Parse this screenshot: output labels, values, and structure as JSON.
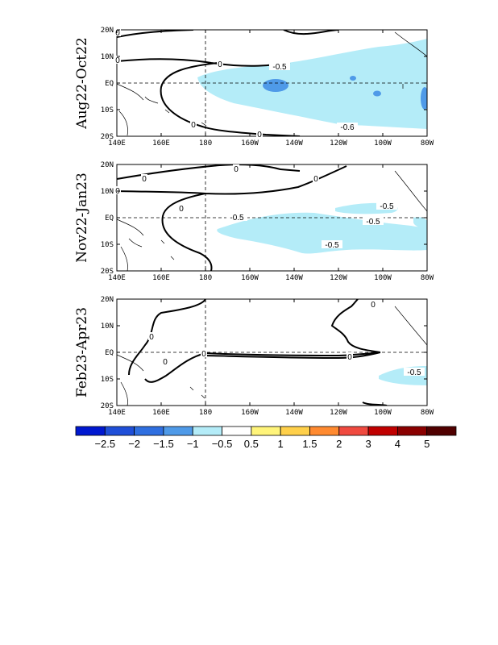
{
  "chart_data": [
    {
      "type": "contour-map",
      "panel_label": "Aug22-Oct22",
      "x_ticks": [
        "140E",
        "160E",
        "180",
        "160W",
        "140W",
        "120W",
        "100W",
        "80W"
      ],
      "y_ticks": [
        "20N",
        "10N",
        "EQ",
        "10S",
        "20S"
      ],
      "contour_labels": [
        "0",
        "0",
        "0",
        "0",
        "0",
        "-0.5",
        "-0.6"
      ]
    },
    {
      "type": "contour-map",
      "panel_label": "Nov22-Jan23",
      "x_ticks": [
        "140E",
        "160E",
        "180",
        "160W",
        "140W",
        "120W",
        "100W",
        "80W"
      ],
      "y_ticks": [
        "20N",
        "10N",
        "EQ",
        "10S",
        "20S"
      ],
      "contour_labels": [
        "0",
        "0",
        "0",
        "0",
        "0",
        "-0.5",
        "-0.5",
        "-0.5",
        "-0.5"
      ]
    },
    {
      "type": "contour-map",
      "panel_label": "Feb23-Apr23",
      "x_ticks": [
        "140E",
        "160E",
        "180",
        "160W",
        "140W",
        "120W",
        "100W",
        "80W"
      ],
      "y_ticks": [
        "20N",
        "10N",
        "EQ",
        "10S",
        "20S"
      ],
      "contour_labels": [
        "0",
        "0",
        "0",
        "0",
        "0",
        "-0.5"
      ]
    }
  ],
  "colorbar": {
    "labels": [
      "-2.5",
      "-2",
      "-1.5",
      "-1",
      "-0.5",
      "0.5",
      "1",
      "1.5",
      "2",
      "3",
      "4",
      "5"
    ],
    "colors": [
      "#0018d0",
      "#1f4fd8",
      "#2f6fe0",
      "#4f9ae8",
      "#b4ecf8",
      "#ffffff",
      "#fff47a",
      "#ffd04a",
      "#ff8a30",
      "#f04a40",
      "#c00000",
      "#8a0000",
      "#500000"
    ]
  }
}
